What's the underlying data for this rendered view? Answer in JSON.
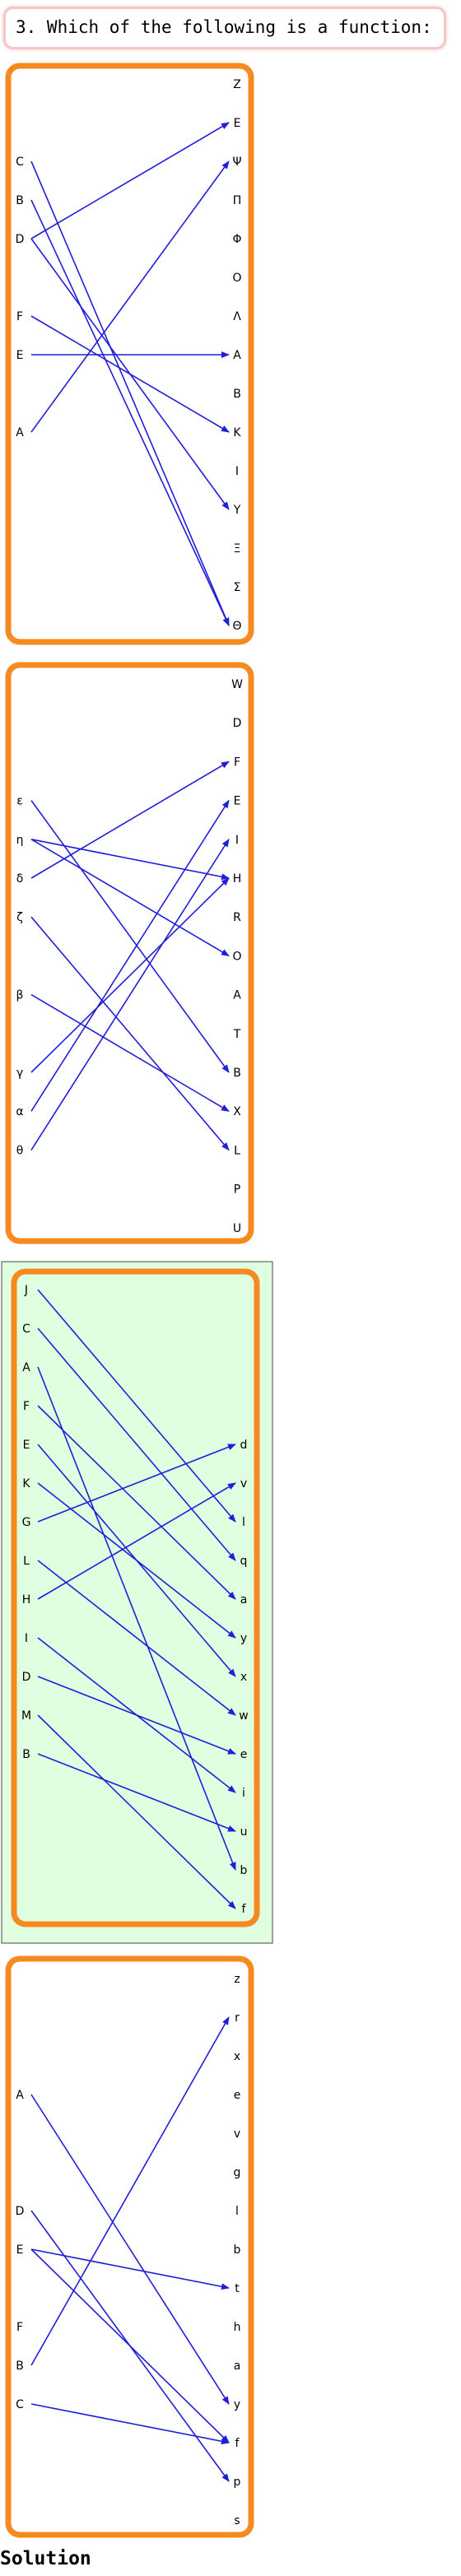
{
  "question": {
    "text": "3. Which of the following is a function:"
  },
  "solution_label": "Solution",
  "colors": {
    "option_border": "#f58a1f",
    "arrow": "#1f1fd9",
    "selected_bg": "#e0ffe0",
    "selected_frame": "#444444"
  },
  "options": [
    {
      "name": "option-1",
      "selected": false,
      "domain": [
        "C",
        "B",
        "D",
        "F",
        "E",
        "A"
      ],
      "codomain": [
        "Z",
        "E",
        "Ψ",
        "Π",
        "Φ",
        "O",
        "Λ",
        "A",
        "B",
        "K",
        "I",
        "Y",
        "Ξ",
        "Σ",
        "Θ"
      ],
      "mapping": [
        [
          "C",
          "Θ"
        ],
        [
          "B",
          "Θ"
        ],
        [
          "D",
          "E"
        ],
        [
          "D",
          "Y"
        ],
        [
          "F",
          "K"
        ],
        [
          "E",
          "A"
        ],
        [
          "A",
          "Ψ"
        ]
      ]
    },
    {
      "name": "option-2",
      "selected": false,
      "domain": [
        "ε",
        "η",
        "δ",
        "ζ",
        "β",
        "γ",
        "α",
        "θ"
      ],
      "codomain": [
        "W",
        "D",
        "F",
        "E",
        "I",
        "H",
        "R",
        "O",
        "A",
        "T",
        "B",
        "X",
        "L",
        "P",
        "U"
      ],
      "mapping": [
        [
          "ε",
          "B"
        ],
        [
          "η",
          "H"
        ],
        [
          "η",
          "O"
        ],
        [
          "δ",
          "F"
        ],
        [
          "ζ",
          "L"
        ],
        [
          "β",
          "X"
        ],
        [
          "γ",
          "H"
        ],
        [
          "α",
          "E"
        ],
        [
          "θ",
          "I"
        ]
      ]
    },
    {
      "name": "option-3",
      "selected": true,
      "domain": [
        "J",
        "C",
        "A",
        "F",
        "E",
        "K",
        "G",
        "L",
        "H",
        "I",
        "D",
        "M",
        "B"
      ],
      "codomain": [
        "d",
        "v",
        "l",
        "q",
        "a",
        "y",
        "x",
        "w",
        "e",
        "i",
        "u",
        "b",
        "f"
      ],
      "mapping": [
        [
          "J",
          "l"
        ],
        [
          "C",
          "q"
        ],
        [
          "A",
          "b"
        ],
        [
          "F",
          "a"
        ],
        [
          "E",
          "x"
        ],
        [
          "K",
          "y"
        ],
        [
          "G",
          "d"
        ],
        [
          "L",
          "w"
        ],
        [
          "H",
          "v"
        ],
        [
          "I",
          "i"
        ],
        [
          "D",
          "e"
        ],
        [
          "M",
          "f"
        ],
        [
          "B",
          "u"
        ]
      ]
    },
    {
      "name": "option-4",
      "selected": false,
      "domain": [
        "A",
        "D",
        "E",
        "F",
        "B",
        "C"
      ],
      "codomain": [
        "z",
        "r",
        "x",
        "e",
        "v",
        "g",
        "l",
        "b",
        "t",
        "h",
        "a",
        "y",
        "f",
        "p",
        "s"
      ],
      "mapping": [
        [
          "A",
          "y"
        ],
        [
          "D",
          "p"
        ],
        [
          "E",
          "t"
        ],
        [
          "E",
          "f"
        ],
        [
          "B",
          "r"
        ],
        [
          "C",
          "f"
        ]
      ]
    }
  ]
}
